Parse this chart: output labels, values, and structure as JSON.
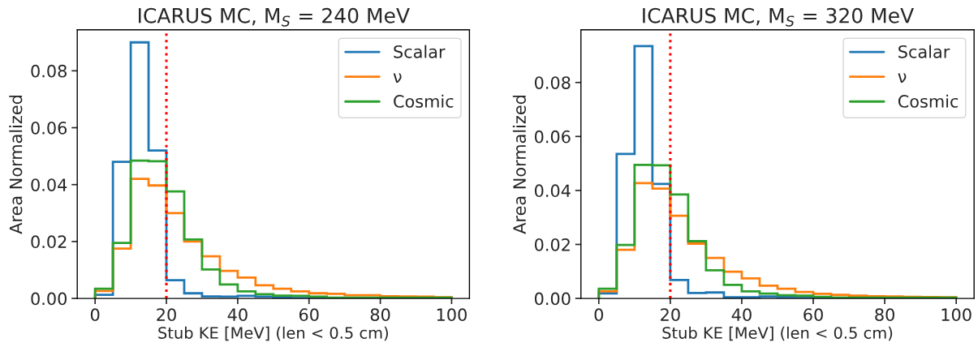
{
  "chart_data": [
    {
      "type": "histogram",
      "title": "ICARUS MC, M$_{S}$ = 240 MeV",
      "xlabel": "Stub KE [MeV] (len < 0.5 cm)",
      "ylabel": "Area Normalized",
      "bins": [
        0,
        5,
        10,
        15,
        20,
        25,
        30,
        35,
        40,
        45,
        50,
        55,
        60,
        65,
        70,
        75,
        80,
        85,
        90,
        95,
        100
      ],
      "series": [
        {
          "name": "Scalar",
          "color": "#1f77b4",
          "values": [
            0.0013,
            0.048,
            0.09,
            0.052,
            0.0064,
            0.0018,
            0.0007,
            0.0006,
            0.0009,
            0.0006,
            0.0002,
            0.0001,
            0,
            0,
            0,
            0,
            0,
            0,
            0,
            0
          ]
        },
        {
          "name": "ν",
          "color": "#ff7f0e",
          "values": [
            0.0026,
            0.0175,
            0.042,
            0.0397,
            0.03,
            0.02,
            0.0148,
            0.0097,
            0.0073,
            0.0046,
            0.0034,
            0.0025,
            0.0018,
            0.0016,
            0.0011,
            0.0011,
            0.0008,
            0.0007,
            0.0006,
            0.0004
          ]
        },
        {
          "name": "Cosmic",
          "color": "#2ca02c",
          "values": [
            0.0034,
            0.0195,
            0.0484,
            0.0482,
            0.0376,
            0.0207,
            0.0102,
            0.0049,
            0.0025,
            0.0015,
            0.001,
            0.0009,
            0.0006,
            0.0003,
            0.0003,
            0.0003,
            0.0003,
            0.0003,
            0.0003,
            0.0003
          ]
        }
      ],
      "xlim": [
        -5,
        105
      ],
      "xticks": [
        0,
        20,
        40,
        60,
        80,
        100
      ],
      "ylim": [
        0,
        0.0944
      ],
      "yticks": [
        {
          "value": 0,
          "label": "0.00"
        },
        {
          "value": 0.02,
          "label": "0.02"
        },
        {
          "value": 0.04,
          "label": "0.04"
        },
        {
          "value": 0.06,
          "label": "0.06"
        },
        {
          "value": 0.08,
          "label": "0.08"
        }
      ],
      "ref_lines": [
        {
          "axis": "x",
          "value": 20,
          "color": "#ff0000",
          "line_style": "dotted"
        }
      ],
      "legend": "top right",
      "grid": false
    },
    {
      "type": "histogram",
      "title": "ICARUS MC, M$_{S}$ = 320 MeV",
      "xlabel": "Stub KE [MeV] (len < 0.5 cm)",
      "ylabel": "Area Normalized",
      "bins": [
        0,
        5,
        10,
        15,
        20,
        25,
        30,
        35,
        40,
        45,
        50,
        55,
        60,
        65,
        70,
        75,
        80,
        85,
        90,
        95,
        100
      ],
      "series": [
        {
          "name": "Scalar",
          "color": "#1f77b4",
          "values": [
            0.0019,
            0.0535,
            0.0935,
            0.0424,
            0.0068,
            0.002,
            0.0022,
            0.0004,
            0.0004,
            0.0007,
            0.0005,
            0.0005,
            0,
            0,
            0,
            0,
            0,
            0,
            0,
            0
          ]
        },
        {
          "name": "ν",
          "color": "#ff7f0e",
          "values": [
            0.0026,
            0.018,
            0.0427,
            0.0407,
            0.0306,
            0.0203,
            0.015,
            0.0099,
            0.0074,
            0.0047,
            0.0036,
            0.0024,
            0.0017,
            0.0013,
            0.001,
            0.0008,
            0.0007,
            0.0006,
            0.0005,
            0.0004
          ]
        },
        {
          "name": "Cosmic",
          "color": "#2ca02c",
          "values": [
            0.0036,
            0.0198,
            0.0495,
            0.0493,
            0.0385,
            0.0212,
            0.0104,
            0.005,
            0.0026,
            0.0018,
            0.0012,
            0.001,
            0.0006,
            0.0003,
            0.0003,
            0.0003,
            0.0003,
            0.0003,
            0.0003,
            0.0003
          ]
        }
      ],
      "xlim": [
        -5,
        105
      ],
      "xticks": [
        0,
        20,
        40,
        60,
        80,
        100
      ],
      "ylim": [
        0,
        0.0995
      ],
      "yticks": [
        {
          "value": 0,
          "label": "0.00"
        },
        {
          "value": 0.02,
          "label": "0.02"
        },
        {
          "value": 0.04,
          "label": "0.04"
        },
        {
          "value": 0.06,
          "label": "0.06"
        },
        {
          "value": 0.08,
          "label": "0.08"
        }
      ],
      "ref_lines": [
        {
          "axis": "x",
          "value": 20,
          "color": "#ff0000",
          "line_style": "dotted"
        }
      ],
      "legend": "top right",
      "grid": false
    }
  ]
}
